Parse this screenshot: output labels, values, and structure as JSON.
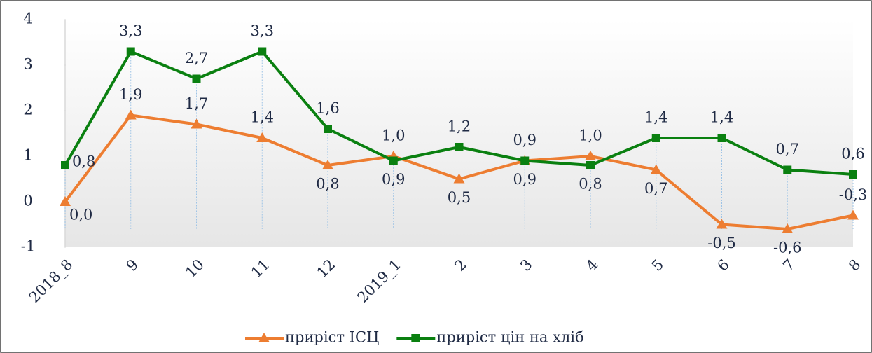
{
  "chart_data": {
    "type": "line",
    "categories": [
      "2018_8",
      "9",
      "10",
      "11",
      "12",
      "2019_1",
      "2",
      "3",
      "4",
      "5",
      "6",
      "7",
      "8"
    ],
    "series": [
      {
        "name": "приріст ІСЦ",
        "color": "#ed7d31",
        "marker": "triangle",
        "values": [
          0.0,
          1.9,
          1.7,
          1.4,
          0.8,
          1.0,
          0.5,
          0.9,
          1.0,
          0.7,
          -0.5,
          -0.6,
          -0.3
        ],
        "value_labels": [
          "0,0",
          "1,9",
          "1,7",
          "1,4",
          "0,8",
          "1,0",
          "0,5",
          "0,9",
          "1,0",
          "0,7",
          "-0,5",
          "-0,6",
          "-0,3"
        ]
      },
      {
        "name": "приріст цін на хліб",
        "color": "#0a8010",
        "marker": "square",
        "values": [
          0.8,
          3.3,
          2.7,
          3.3,
          1.6,
          0.9,
          1.2,
          0.9,
          0.8,
          1.4,
          1.4,
          0.7,
          0.6
        ],
        "value_labels": [
          "0,8",
          "3,3",
          "2,7",
          "3,3",
          "1,6",
          "0,9",
          "1,2",
          "0,9",
          "0,8",
          "1,4",
          "1,4",
          "0,7",
          "0,6"
        ]
      }
    ],
    "ylim": [
      -1,
      4
    ],
    "yticks": [
      -1,
      0,
      1,
      2,
      3,
      4
    ],
    "legend": "bottom",
    "drop_lines": true
  }
}
